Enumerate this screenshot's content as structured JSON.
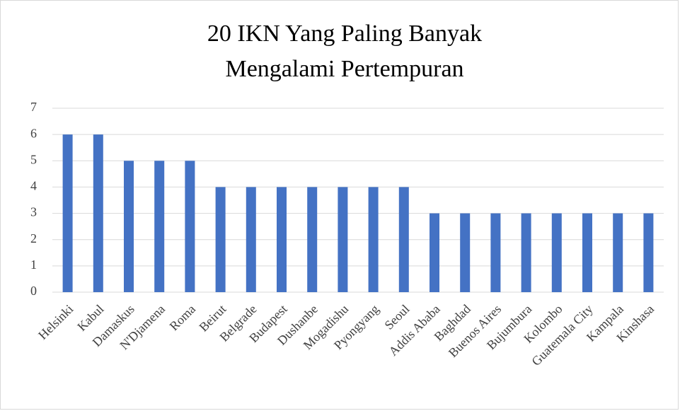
{
  "chart_data": {
    "type": "bar",
    "title": [
      "20 IKN Yang Paling Banyak",
      "Mengalami Pertempuran"
    ],
    "categories": [
      "Helsinki",
      "Kabul",
      "Damaskus",
      "N'Djamena",
      "Roma",
      "Beirut",
      "Belgrade",
      "Budapest",
      "Dushanbe",
      "Mogadishu",
      "Pyongyang",
      "Seoul",
      "Addis Ababa",
      "Baghdad",
      "Buenos Aires",
      "Bujumbura",
      "Kolombo",
      "Guatemala City",
      "Kampala",
      "Kinshasa"
    ],
    "values": [
      6,
      6,
      5,
      5,
      5,
      4,
      4,
      4,
      4,
      4,
      4,
      4,
      3,
      3,
      3,
      3,
      3,
      3,
      3,
      3
    ],
    "color": "#4472c4",
    "ylim": [
      0,
      7
    ],
    "yticks": [
      0,
      1,
      2,
      3,
      4,
      5,
      6,
      7
    ],
    "grid": true
  }
}
